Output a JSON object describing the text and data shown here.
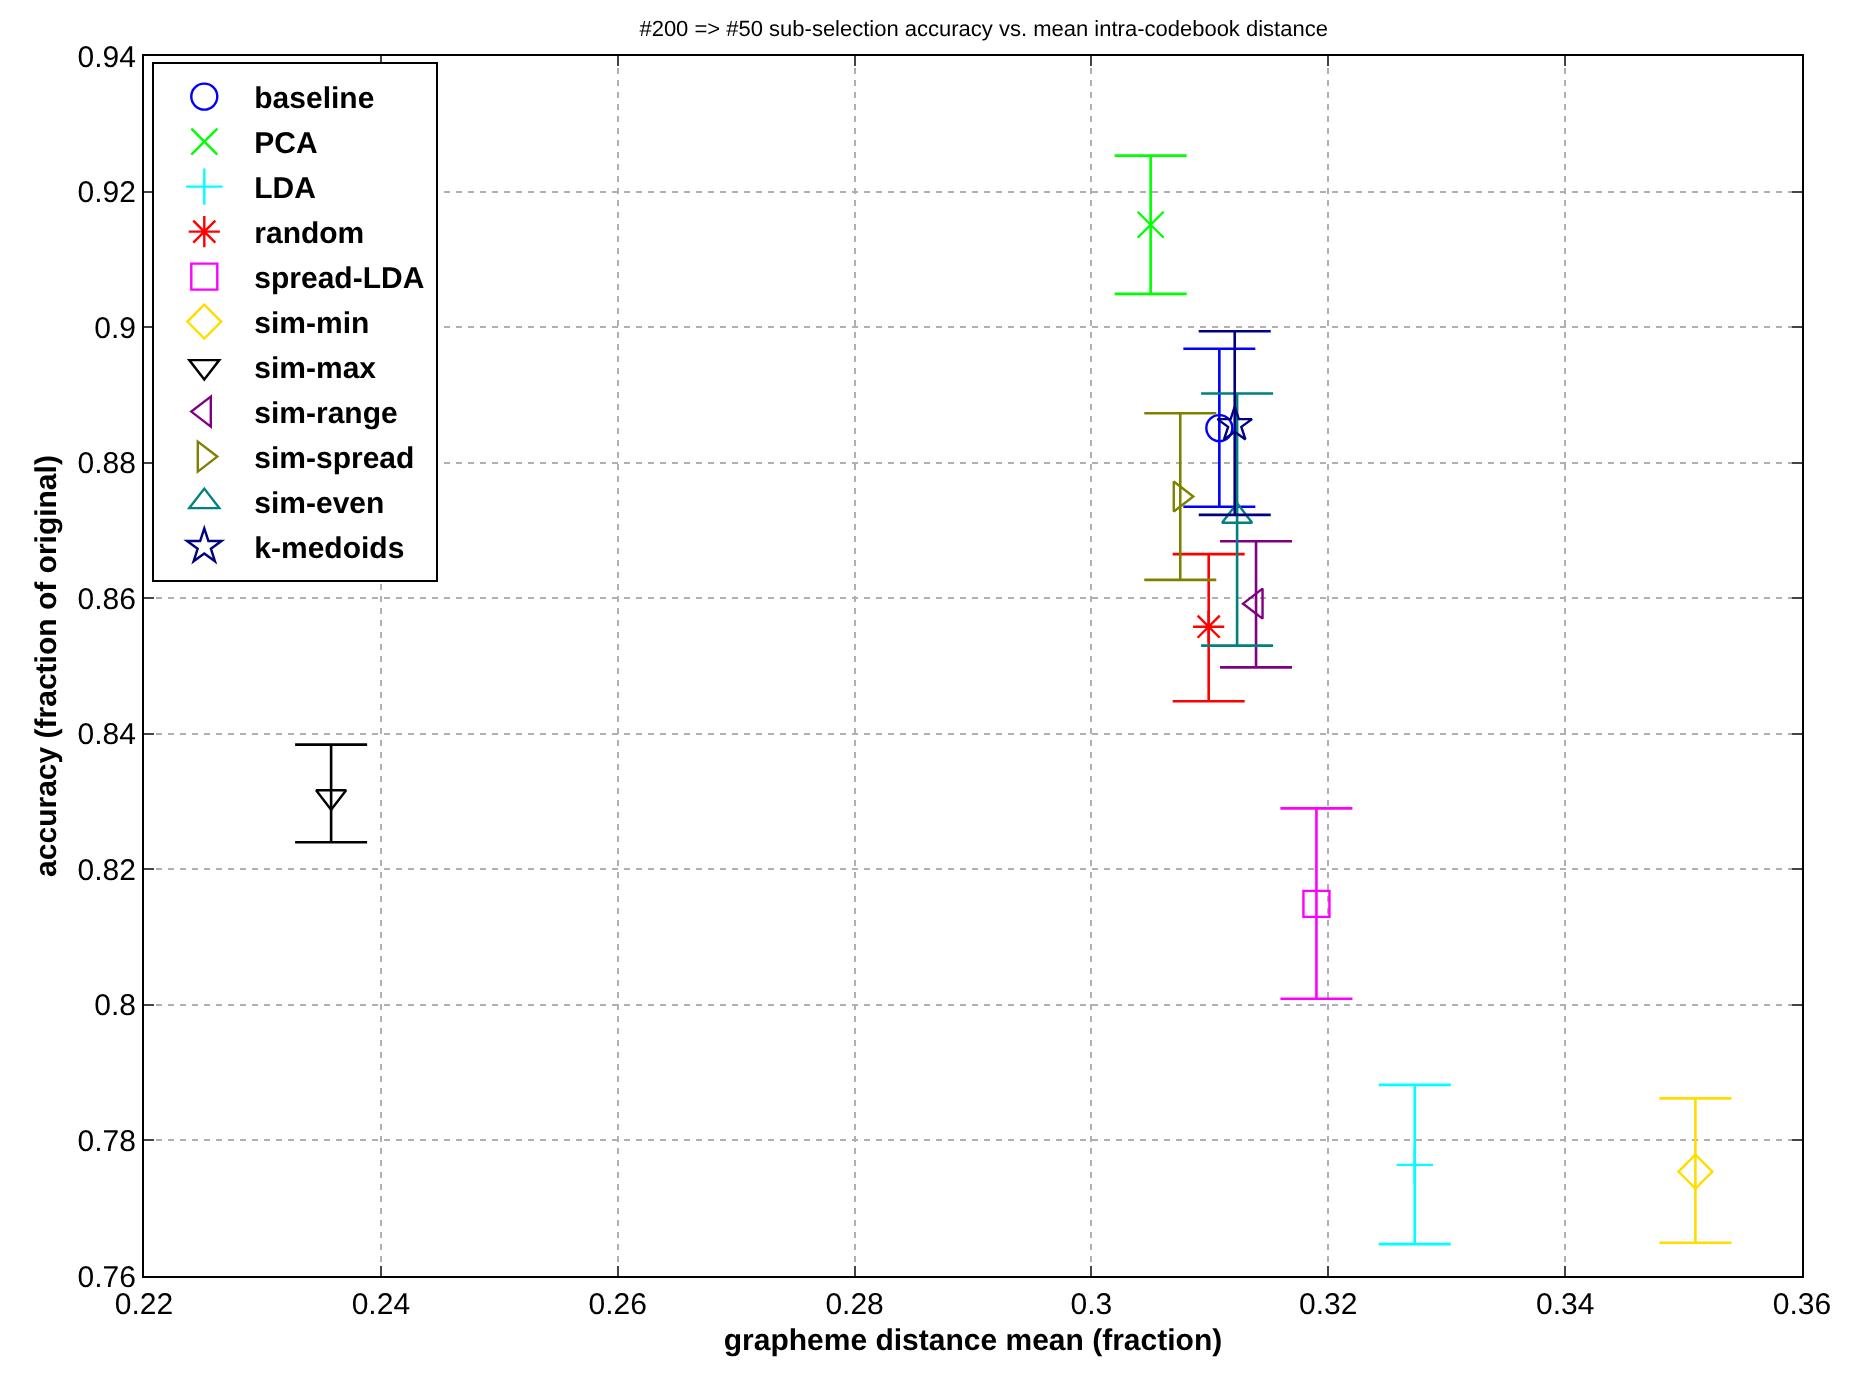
{
  "chart_data": {
    "type": "scatter",
    "title": "#200 => #50 sub-selection accuracy vs. mean intra-codebook distance",
    "xlabel": "grapheme distance mean (fraction)",
    "ylabel": "accuracy (fraction of original)",
    "xlim": [
      0.22,
      0.36
    ],
    "xticks": [
      0.22,
      0.24,
      0.26,
      0.28,
      0.3,
      0.32,
      0.34,
      0.36
    ],
    "ylim": [
      0.76,
      0.94
    ],
    "yticks": [
      0.76,
      0.78,
      0.8,
      0.82,
      0.84,
      0.86,
      0.88,
      0.9,
      0.92,
      0.94
    ],
    "grid": true,
    "legend": "top left",
    "series": [
      {
        "name": "baseline",
        "color": "#0000ff",
        "marker": "circle",
        "x": [
          0.3108
        ],
        "values": [
          0.8851
        ],
        "errors": [
          [
            0.8735,
            0.8968
          ]
        ]
      },
      {
        "name": "PCA",
        "color": "#00ff00",
        "marker": "x",
        "x": [
          0.305
        ],
        "values": [
          0.9151
        ],
        "errors": [
          [
            0.9049,
            0.9253
          ]
        ]
      },
      {
        "name": "LDA",
        "color": "#00ffff",
        "marker": "cross",
        "x": [
          0.3273
        ],
        "values": [
          0.7764
        ],
        "errors": [
          [
            0.7647,
            0.7882
          ]
        ]
      },
      {
        "name": "random",
        "color": "#ff0000",
        "marker": "cross",
        "x": [
          0.3099
        ],
        "values": [
          0.8558
        ],
        "errors": [
          [
            0.8448,
            0.8665
          ]
        ]
      },
      {
        "name": "spread-LDA",
        "color": "#ff00ff",
        "marker": "square",
        "x": [
          0.319
        ],
        "values": [
          0.8149
        ],
        "errors": [
          [
            0.8009,
            0.829
          ]
        ]
      },
      {
        "name": "sim-min",
        "color": "#ffdd00",
        "marker": "diamond",
        "x": [
          0.351
        ],
        "values": [
          0.7754
        ],
        "errors": [
          [
            0.7649,
            0.7862
          ]
        ]
      },
      {
        "name": "sim-max",
        "color": "#000000",
        "marker": "triangle-down",
        "x": [
          0.2358
        ],
        "values": [
          0.8307
        ],
        "errors": [
          [
            0.824,
            0.8384
          ]
        ]
      },
      {
        "name": "sim-range",
        "color": "#800080",
        "marker": "triangle-left",
        "x": [
          0.3139
        ],
        "values": [
          0.8592
        ],
        "errors": [
          [
            0.8498,
            0.8684
          ]
        ]
      },
      {
        "name": "sim-spread",
        "color": "#808000",
        "marker": "triangle-right",
        "x": [
          0.3075
        ],
        "values": [
          0.875
        ],
        "errors": [
          [
            0.8627,
            0.8873
          ]
        ]
      },
      {
        "name": "sim-even",
        "color": "#008080",
        "marker": "triangle-up",
        "x": [
          0.3123
        ],
        "values": [
          0.8721
        ],
        "errors": [
          [
            0.853,
            0.8902
          ]
        ]
      },
      {
        "name": "k-medoids",
        "color": "#000080",
        "marker": "star",
        "x": [
          0.3121
        ],
        "values": [
          0.8856
        ],
        "errors": [
          [
            0.8723,
            0.8994
          ]
        ]
      }
    ]
  }
}
